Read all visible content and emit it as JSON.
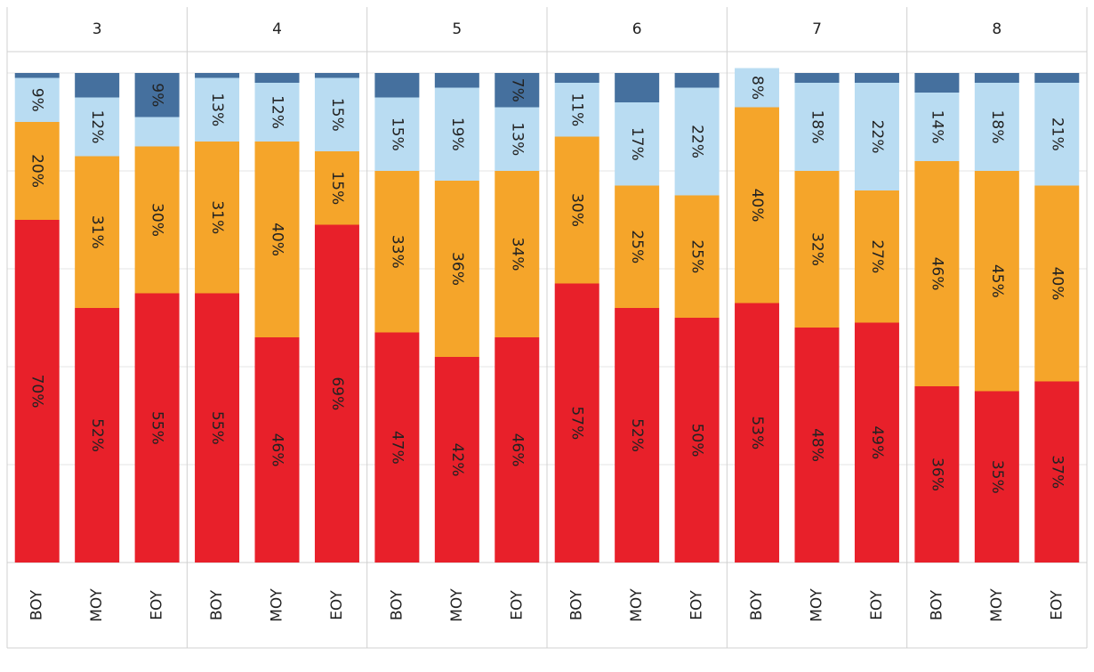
{
  "chart_data": {
    "type": "stacked_bar",
    "groups": [
      "3",
      "4",
      "5",
      "6",
      "7",
      "8"
    ],
    "categories": [
      "BOY",
      "MOY",
      "EOY",
      "BOY",
      "MOY",
      "EOY",
      "BOY",
      "MOY",
      "EOY",
      "BOY",
      "MOY",
      "EOY",
      "BOY",
      "MOY",
      "EOY",
      "BOY",
      "MOY",
      "EOY"
    ],
    "ylim": [
      0,
      100
    ],
    "yticks": [
      0,
      20,
      40,
      60,
      80,
      100
    ],
    "grid": true,
    "series": [
      {
        "color": "#e8202a",
        "values": [
          70,
          52,
          55,
          55,
          46,
          69,
          47,
          42,
          46,
          57,
          52,
          50,
          53,
          48,
          49,
          36,
          35,
          37
        ],
        "value_labels": [
          "70%",
          "52%",
          "55%",
          "55%",
          "46%",
          "69%",
          "47%",
          "42%",
          "46%",
          "57%",
          "52%",
          "50%",
          "53%",
          "48%",
          "49%",
          "36%",
          "35%",
          "37%"
        ]
      },
      {
        "color": "#f5a52a",
        "values": [
          20,
          31,
          30,
          31,
          40,
          15,
          33,
          36,
          34,
          30,
          25,
          25,
          40,
          32,
          27,
          46,
          45,
          40
        ],
        "value_labels": [
          "20%",
          "31%",
          "30%",
          "31%",
          "40%",
          "15%",
          "33%",
          "36%",
          "34%",
          "30%",
          "25%",
          "25%",
          "40%",
          "32%",
          "27%",
          "46%",
          "45%",
          "40%"
        ]
      },
      {
        "color": "#b9dcf2",
        "values": [
          9,
          12,
          6,
          13,
          12,
          15,
          15,
          19,
          13,
          11,
          17,
          22,
          8,
          18,
          22,
          14,
          18,
          21
        ],
        "value_labels": [
          "9%",
          "12%",
          null,
          "13%",
          "12%",
          "15%",
          "15%",
          "19%",
          "13%",
          "11%",
          "17%",
          "22%",
          "8%",
          "18%",
          "22%",
          "14%",
          "18%",
          "21%"
        ]
      },
      {
        "color": "#45709e",
        "values": [
          1,
          5,
          9,
          1,
          2,
          1,
          5,
          3,
          7,
          2,
          6,
          3,
          0,
          2,
          2,
          4,
          2,
          2
        ],
        "value_labels": [
          null,
          null,
          "9%",
          null,
          null,
          null,
          null,
          null,
          "7%",
          null,
          null,
          null,
          null,
          null,
          null,
          null,
          null,
          null
        ]
      }
    ]
  }
}
